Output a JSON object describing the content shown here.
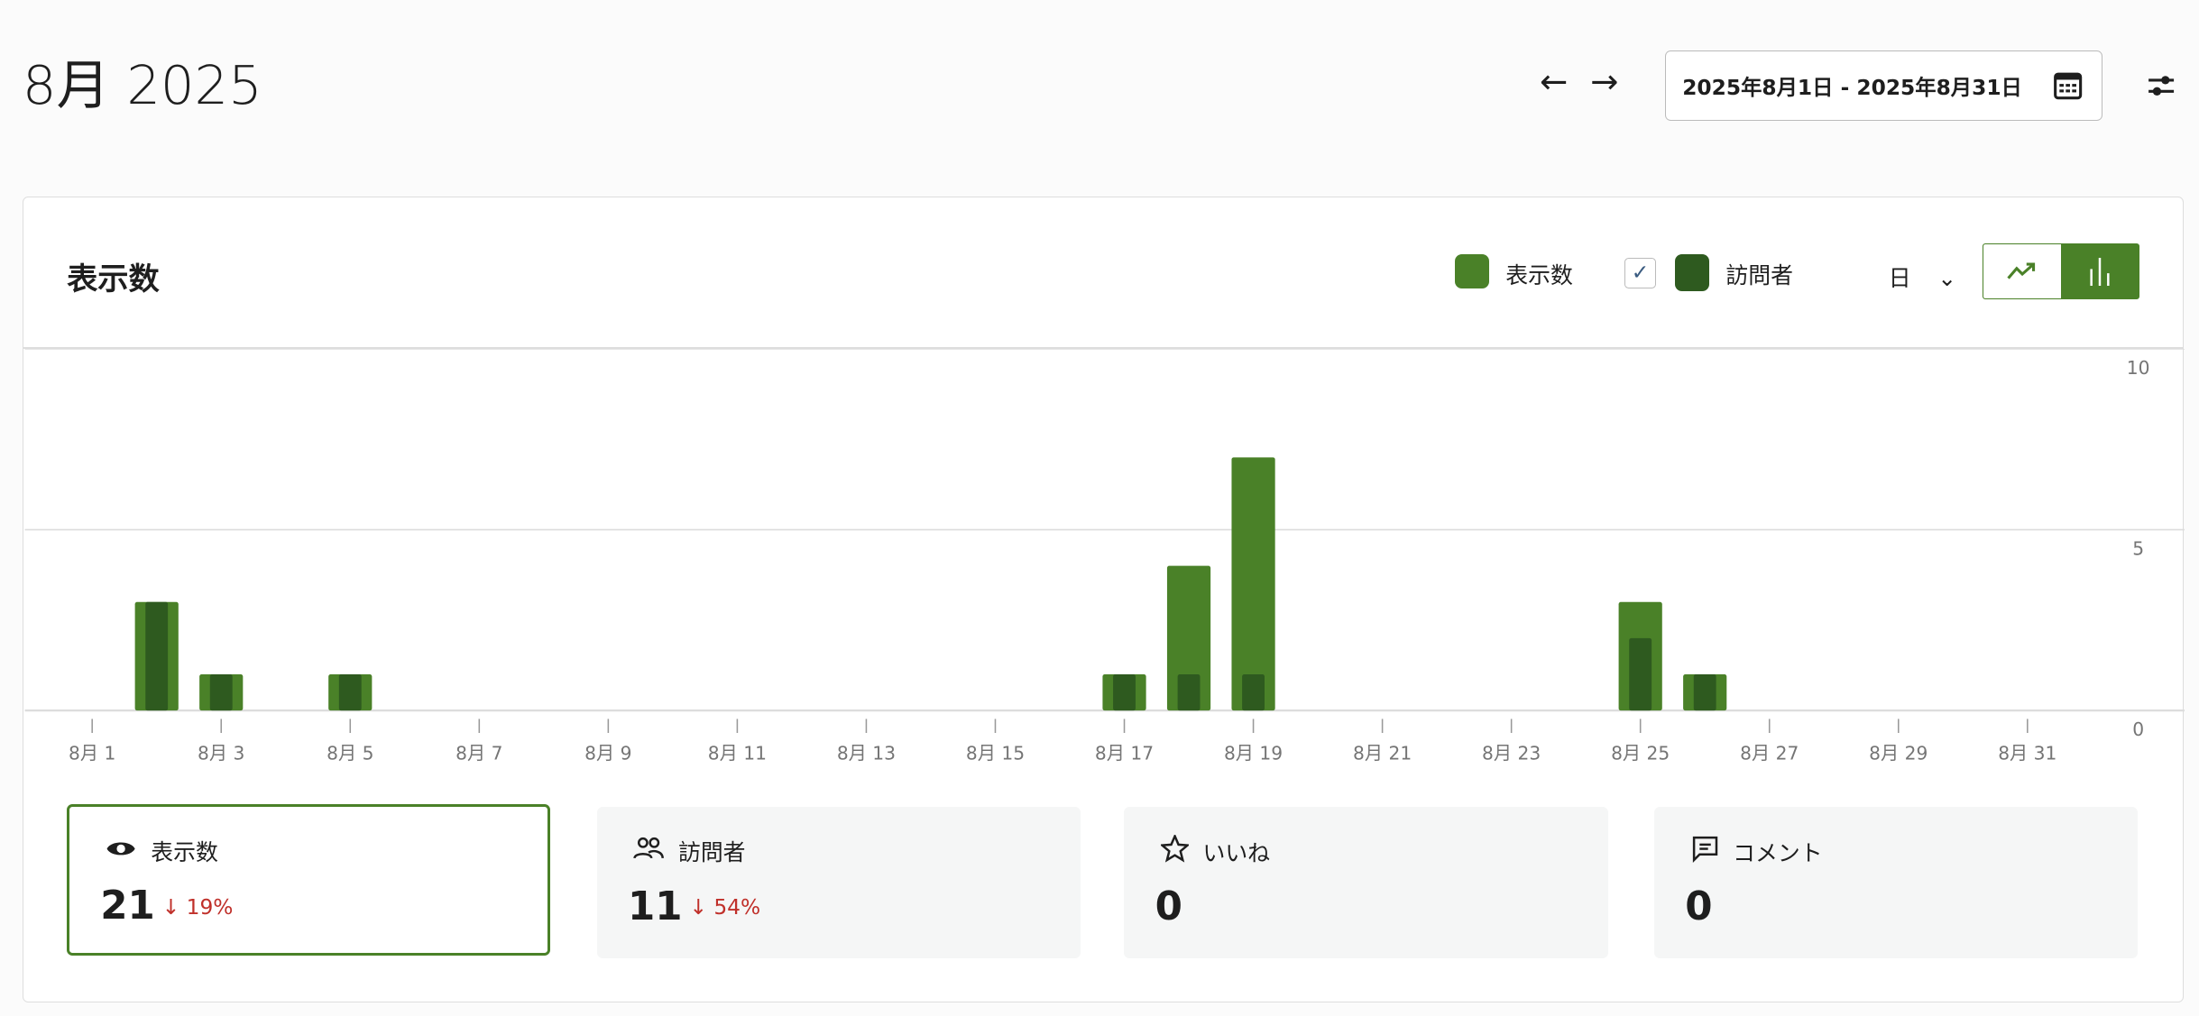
{
  "header": {
    "title": "8月 2025",
    "prev_icon": "arrow-left",
    "next_icon": "arrow-right",
    "date_range": "2025年8月1日 - 2025年8月31日",
    "calendar_icon": "calendar",
    "settings_icon": "sliders"
  },
  "card": {
    "title": "表示数",
    "legend": [
      {
        "label": "表示数",
        "color": "#4a8128"
      },
      {
        "label": "訪問者",
        "color": "#2e5a1f",
        "checked": true
      }
    ],
    "period": "日",
    "chart_types": [
      "line",
      "bar"
    ],
    "selected_chart_type": "bar"
  },
  "chart_data": {
    "type": "bar",
    "x": [
      "8月 1",
      "8月 2",
      "8月 3",
      "8月 4",
      "8月 5",
      "8月 6",
      "8月 7",
      "8月 8",
      "8月 9",
      "8月 10",
      "8月 11",
      "8月 12",
      "8月 13",
      "8月 14",
      "8月 15",
      "8月 16",
      "8月 17",
      "8月 18",
      "8月 19",
      "8月 20",
      "8月 21",
      "8月 22",
      "8月 23",
      "8月 24",
      "8月 25",
      "8月 26",
      "8月 27",
      "8月 28",
      "8月 29",
      "8月 30",
      "8月 31"
    ],
    "tick_labels": [
      "8月 1",
      "8月 3",
      "8月 5",
      "8月 7",
      "8月 9",
      "8月 11",
      "8月 13",
      "8月 15",
      "8月 17",
      "8月 19",
      "8月 21",
      "8月 23",
      "8月 25",
      "8月 27",
      "8月 29",
      "8月 31"
    ],
    "series": [
      {
        "name": "表示数",
        "color": "#4a8128",
        "values": [
          0,
          3,
          1,
          0,
          1,
          0,
          0,
          0,
          0,
          0,
          0,
          0,
          0,
          0,
          0,
          0,
          1,
          4,
          7,
          0,
          0,
          0,
          0,
          0,
          3,
          1,
          0,
          0,
          0,
          0,
          0
        ]
      },
      {
        "name": "訪問者",
        "color": "#2e5a1f",
        "values": [
          0,
          3,
          1,
          0,
          1,
          0,
          0,
          0,
          0,
          0,
          0,
          0,
          0,
          0,
          0,
          0,
          1,
          1,
          1,
          0,
          0,
          0,
          0,
          0,
          2,
          1,
          0,
          0,
          0,
          0,
          0
        ]
      }
    ],
    "ylim": [
      0,
      10
    ],
    "yticks": [
      "0",
      "5",
      "10"
    ],
    "grid": true,
    "yaxis_side": "right"
  },
  "stats": [
    {
      "label": "表示数",
      "icon": "eye",
      "value": "21",
      "change": "↓ 19%",
      "selected": true
    },
    {
      "label": "訪問者",
      "icon": "people",
      "value": "11",
      "change": "↓ 54%"
    },
    {
      "label": "いいね",
      "icon": "star",
      "value": "0",
      "change": ""
    },
    {
      "label": "コメント",
      "icon": "comment",
      "value": "0",
      "change": ""
    }
  ]
}
